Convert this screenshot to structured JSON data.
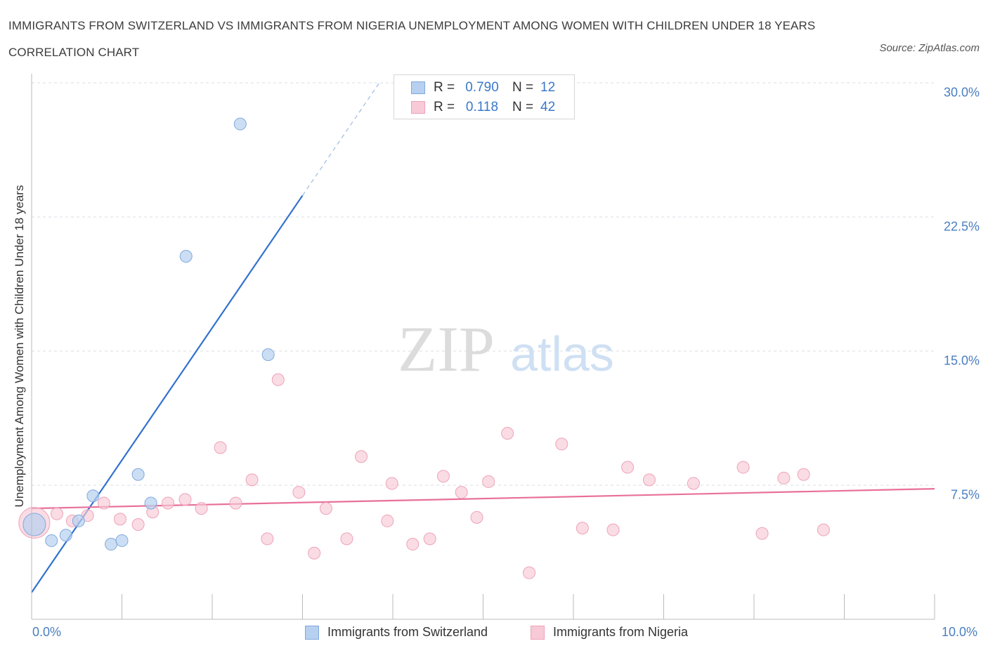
{
  "title": "IMMIGRANTS FROM SWITZERLAND VS IMMIGRANTS FROM NIGERIA UNEMPLOYMENT AMONG WOMEN WITH CHILDREN UNDER 18 YEARS CORRELATION CHART",
  "source": "Source: ZipAtlas.com",
  "watermark": {
    "zip": "ZIP",
    "atlas": "atlas"
  },
  "legend": {
    "r_label": "R =",
    "n_label": "N =",
    "rows": [
      {
        "r": "0.790",
        "n": "12"
      },
      {
        "r": "0.118",
        "n": "42"
      }
    ]
  },
  "colors": {
    "switzerland_fill": "#b7d0f0",
    "switzerland_stroke": "#7fa9dd",
    "switzerland_line": "#3271cf",
    "nigeria_fill": "#f8c9d6",
    "nigeria_stroke": "#eea3b8",
    "nigeria_line": "#e8709a",
    "grid": "#d9dde3",
    "tick_label": "#4a7fc1"
  },
  "chart_data": {
    "type": "scatter",
    "ylabel": "Unemployment Among Women with Children Under 18 years",
    "xlim": [
      0,
      10
    ],
    "ylim": [
      0,
      30
    ],
    "x_tick_labels": [
      "0.0%",
      "10.0%"
    ],
    "y_ticks": [
      {
        "value": 7.5,
        "label": "7.5%"
      },
      {
        "value": 15,
        "label": "15.0%"
      },
      {
        "value": 22.5,
        "label": "22.5%"
      },
      {
        "value": 30,
        "label": "30.0%"
      }
    ],
    "grid": true,
    "legend_position": "top-center",
    "series": [
      {
        "name": "Immigrants from Switzerland",
        "r": 0.79,
        "n": 12,
        "points": [
          {
            "x": 0.03,
            "y": 5.3,
            "big": true
          },
          {
            "x": 0.22,
            "y": 4.4
          },
          {
            "x": 0.38,
            "y": 4.7
          },
          {
            "x": 0.52,
            "y": 5.5
          },
          {
            "x": 0.68,
            "y": 6.9
          },
          {
            "x": 0.88,
            "y": 4.2
          },
          {
            "x": 1.0,
            "y": 4.4
          },
          {
            "x": 1.18,
            "y": 8.1
          },
          {
            "x": 1.32,
            "y": 6.5
          },
          {
            "x": 1.71,
            "y": 20.3
          },
          {
            "x": 2.31,
            "y": 27.7
          },
          {
            "x": 2.62,
            "y": 14.8
          }
        ],
        "trend": {
          "x0": 0,
          "y0": 1.5,
          "x1": 3.0,
          "y1": 23.7,
          "dash_to": {
            "x": 3.85,
            "y": 30
          }
        }
      },
      {
        "name": "Immigrants from Nigeria",
        "r": 0.118,
        "n": 42,
        "points": [
          {
            "x": 0.03,
            "y": 5.4,
            "big": true
          },
          {
            "x": 0.28,
            "y": 5.9
          },
          {
            "x": 0.45,
            "y": 5.5
          },
          {
            "x": 0.62,
            "y": 5.8
          },
          {
            "x": 0.8,
            "y": 6.5
          },
          {
            "x": 0.98,
            "y": 5.6
          },
          {
            "x": 1.18,
            "y": 5.3
          },
          {
            "x": 1.34,
            "y": 6.0
          },
          {
            "x": 1.51,
            "y": 6.5
          },
          {
            "x": 1.7,
            "y": 6.7
          },
          {
            "x": 1.88,
            "y": 6.2
          },
          {
            "x": 2.09,
            "y": 9.6
          },
          {
            "x": 2.26,
            "y": 6.5
          },
          {
            "x": 2.44,
            "y": 7.8
          },
          {
            "x": 2.61,
            "y": 4.5
          },
          {
            "x": 2.73,
            "y": 13.4
          },
          {
            "x": 2.96,
            "y": 7.1
          },
          {
            "x": 3.13,
            "y": 3.7
          },
          {
            "x": 3.26,
            "y": 6.2
          },
          {
            "x": 3.49,
            "y": 4.5
          },
          {
            "x": 3.65,
            "y": 9.1
          },
          {
            "x": 3.94,
            "y": 5.5
          },
          {
            "x": 3.99,
            "y": 7.6
          },
          {
            "x": 4.22,
            "y": 4.2
          },
          {
            "x": 4.41,
            "y": 4.5
          },
          {
            "x": 4.56,
            "y": 8.0
          },
          {
            "x": 4.76,
            "y": 7.1
          },
          {
            "x": 4.93,
            "y": 5.7
          },
          {
            "x": 5.06,
            "y": 7.7
          },
          {
            "x": 5.27,
            "y": 10.4
          },
          {
            "x": 5.51,
            "y": 2.6
          },
          {
            "x": 5.87,
            "y": 9.8
          },
          {
            "x": 6.1,
            "y": 5.1
          },
          {
            "x": 6.44,
            "y": 5.0
          },
          {
            "x": 6.6,
            "y": 8.5
          },
          {
            "x": 6.84,
            "y": 7.8
          },
          {
            "x": 7.33,
            "y": 7.6
          },
          {
            "x": 7.88,
            "y": 8.5
          },
          {
            "x": 8.09,
            "y": 4.8
          },
          {
            "x": 8.33,
            "y": 7.9
          },
          {
            "x": 8.55,
            "y": 8.1
          },
          {
            "x": 8.77,
            "y": 5.0
          }
        ],
        "trend": {
          "x0": 0,
          "y0": 6.2,
          "x1": 10,
          "y1": 7.3
        }
      }
    ]
  }
}
